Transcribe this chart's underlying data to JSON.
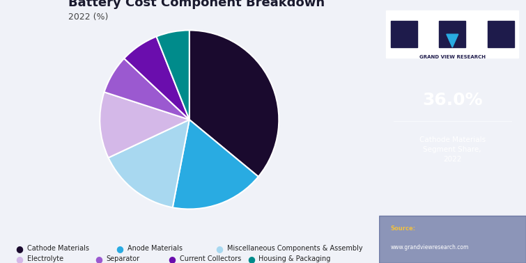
{
  "title": "Battery Cost Component Breakdown",
  "subtitle": "2022 (%)",
  "labels": [
    "Cathode Materials",
    "Anode Materials",
    "Miscellaneous Components & Assembly",
    "Electrolyte",
    "Separator",
    "Current Collectors",
    "Housing & Packaging"
  ],
  "values": [
    36.0,
    17.0,
    15.0,
    12.0,
    7.0,
    7.0,
    6.0
  ],
  "colors": [
    "#1a0a2e",
    "#29abe2",
    "#a8d8f0",
    "#d4b8e8",
    "#9b59d0",
    "#6a0dad",
    "#008b8b"
  ],
  "sidebar_bg": "#1e1b4b",
  "main_bg": "#f0f2f8",
  "highlight_value": "36.0%",
  "highlight_label": "Cathode Materials\nSegment Share,\n2022",
  "legend_row1": [
    "Cathode Materials",
    "Anode Materials",
    "Miscellaneous Components & Assembly"
  ],
  "legend_row2": [
    "Electrolyte",
    "Separator",
    "Current Collectors",
    "Housing & Packaging"
  ]
}
